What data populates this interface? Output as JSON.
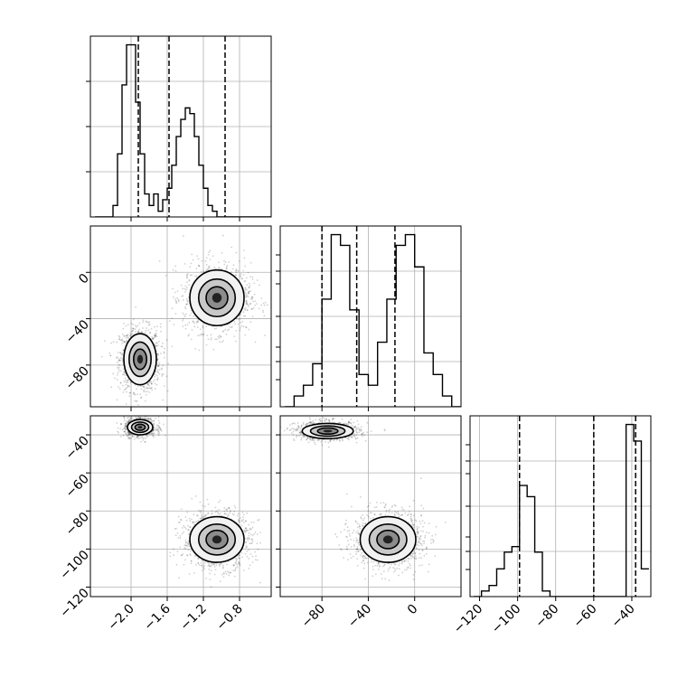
{
  "chart_data": {
    "type": "corner",
    "parameters": [
      {
        "name": "",
        "range": [
          -2.45,
          -0.45
        ],
        "ticks": [
          -2.0,
          -1.6,
          -1.2,
          -0.8
        ],
        "tick_labels": [
          "−2.0",
          "−1.6",
          "−1.2",
          "−0.8"
        ],
        "quantiles": [
          -1.92,
          -1.58,
          -0.96
        ]
      },
      {
        "name": "",
        "range": [
          -116,
          40
        ],
        "ticks": [
          -80,
          -40,
          0
        ],
        "tick_labels": [
          "−80",
          "−40",
          "0"
        ],
        "quantiles": [
          -80,
          -50,
          -17
        ]
      },
      {
        "name": "",
        "range": [
          -125,
          -30
        ],
        "ticks": [
          -120,
          -100,
          -80,
          -60,
          -40
        ],
        "tick_labels": [
          "−120",
          "−100",
          "−80",
          "−60",
          "−40"
        ],
        "quantiles": [
          -99,
          -60,
          -38
        ]
      }
    ],
    "row_ticks": {
      "1": {
        "ticks": [
          0,
          -40,
          -80
        ],
        "tick_labels": [
          "0",
          "−40",
          "−80"
        ]
      },
      "2": {
        "ticks": [
          -40,
          -60,
          -80,
          -100,
          -120
        ],
        "tick_labels": [
          "−40",
          "−60",
          "−80",
          "−100",
          "−120"
        ]
      }
    },
    "histograms": [
      {
        "param": 0,
        "bins": [
          -2.4,
          -2.35,
          -2.3,
          -2.25,
          -2.2,
          -2.15,
          -2.1,
          -2.05,
          -2.0,
          -1.95,
          -1.9,
          -1.85,
          -1.8,
          -1.75,
          -1.7,
          -1.65,
          -1.6,
          -1.55,
          -1.5,
          -1.45,
          -1.4,
          -1.35,
          -1.3,
          -1.25,
          -1.2,
          -1.15,
          -1.1,
          -1.05,
          -1.0,
          -0.95,
          -0.9,
          -0.85,
          -0.8,
          -0.75,
          -0.7,
          -0.65,
          -0.6,
          -0.55,
          -0.5,
          -0.45
        ],
        "counts": [
          0,
          0,
          0,
          0,
          2,
          11,
          23,
          30,
          30,
          20,
          11,
          4,
          2,
          4,
          1,
          3,
          5,
          9,
          14,
          17,
          19,
          18,
          14,
          9,
          5,
          2,
          1,
          0,
          0,
          0,
          0,
          0,
          0,
          0,
          0,
          0,
          0,
          0,
          0
        ]
      },
      {
        "param": 1,
        "bins": [
          -112,
          -104,
          -96,
          -88,
          -80,
          -72,
          -64,
          -56,
          -48,
          -40,
          -32,
          -24,
          -16,
          -8,
          0,
          8,
          16,
          24,
          32,
          40
        ],
        "counts": [
          0,
          1,
          2,
          4,
          10,
          16,
          15,
          9,
          3,
          2,
          6,
          10,
          15,
          16,
          13,
          5,
          3,
          1,
          0
        ]
      },
      {
        "param": 2,
        "bins": [
          -123,
          -119,
          -115,
          -111,
          -107,
          -103,
          -99,
          -95,
          -91,
          -87,
          -83,
          -79,
          -75,
          -71,
          -67,
          -63,
          -59,
          -55,
          -51,
          -47,
          -43,
          -39,
          -35,
          -31
        ],
        "counts": [
          0,
          1,
          2,
          5,
          8,
          9,
          20,
          18,
          8,
          1,
          0,
          0,
          0,
          0,
          0,
          0,
          0,
          0,
          0,
          0,
          31,
          28,
          5
        ]
      }
    ],
    "clusters": [
      {
        "row": 1,
        "col": 0,
        "cx": -1.9,
        "cy": -75,
        "sx": 0.09,
        "sy": 11,
        "n": 1100
      },
      {
        "row": 1,
        "col": 0,
        "cx": -1.05,
        "cy": -22,
        "sx": 0.15,
        "sy": 12,
        "n": 1200
      },
      {
        "row": 2,
        "col": 0,
        "cx": -1.9,
        "cy": -36,
        "sx": 0.07,
        "sy": 2,
        "n": 900
      },
      {
        "row": 2,
        "col": 0,
        "cx": -1.05,
        "cy": -95,
        "sx": 0.15,
        "sy": 6,
        "n": 1200
      },
      {
        "row": 2,
        "col": 1,
        "cx": -75,
        "cy": -38,
        "sx": 11,
        "sy": 2,
        "n": 900
      },
      {
        "row": 2,
        "col": 1,
        "cx": -23,
        "cy": -95,
        "sx": 12,
        "sy": 6,
        "n": 1200
      }
    ],
    "grid": true,
    "quantile_lines": "dashed"
  }
}
